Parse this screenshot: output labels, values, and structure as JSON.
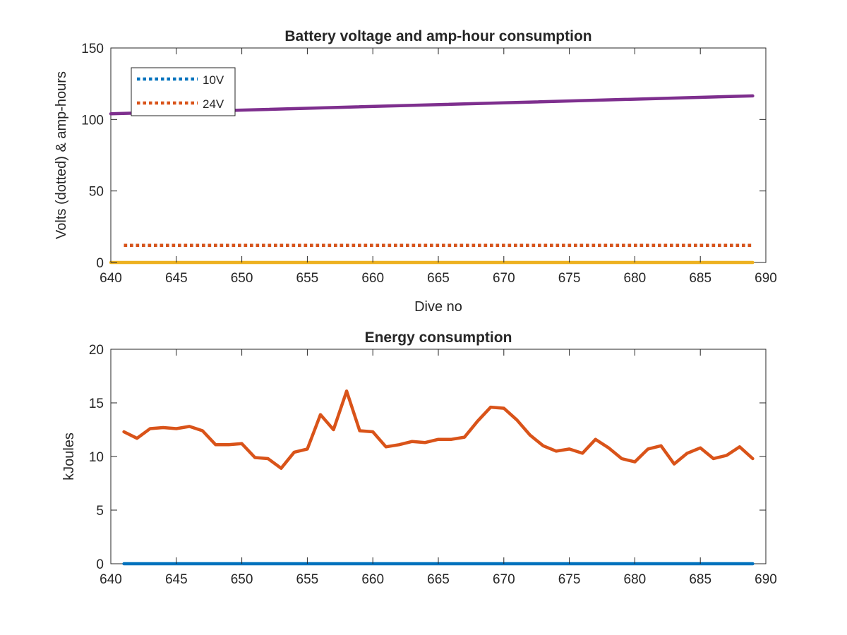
{
  "chart_data": [
    {
      "type": "line",
      "title": "Battery voltage and amp-hour consumption",
      "xlabel": "Dive no",
      "ylabel": "Volts (dotted) & amp-hours",
      "xlim": [
        640,
        690
      ],
      "ylim": [
        0,
        150
      ],
      "xticks": [
        640,
        645,
        650,
        655,
        660,
        665,
        670,
        675,
        680,
        685,
        690
      ],
      "yticks": [
        0,
        50,
        100,
        150
      ],
      "legend_position": "top-left",
      "grid": false,
      "series": [
        {
          "name": "10V",
          "style": "dotted",
          "color": "#0072bd",
          "legend": true,
          "x": [
            641,
            689
          ],
          "y": [
            12,
            12
          ]
        },
        {
          "name": "24V",
          "style": "dotted",
          "color": "#d95319",
          "legend": true,
          "x": [
            641,
            689
          ],
          "y": [
            12,
            12
          ]
        },
        {
          "name": "",
          "style": "solid",
          "color": "#edb120",
          "legend": false,
          "x": [
            640,
            689
          ],
          "y": [
            0,
            0
          ]
        },
        {
          "name": "",
          "style": "solid",
          "color": "#7e2f8e",
          "legend": false,
          "x": [
            640,
            689
          ],
          "y": [
            104,
            116.5
          ]
        }
      ]
    },
    {
      "type": "line",
      "title": "Energy consumption",
      "xlabel": "",
      "ylabel": "kJoules",
      "xlim": [
        640,
        690
      ],
      "ylim": [
        0,
        20
      ],
      "xticks": [
        640,
        645,
        650,
        655,
        660,
        665,
        670,
        675,
        680,
        685,
        690
      ],
      "yticks": [
        0,
        5,
        10,
        15,
        20
      ],
      "grid": false,
      "series": [
        {
          "name": "",
          "style": "solid",
          "color": "#0072bd",
          "legend": false,
          "x": [
            641,
            689
          ],
          "y": [
            0,
            0
          ]
        },
        {
          "name": "",
          "style": "solid",
          "color": "#d95319",
          "legend": false,
          "x": [
            641,
            642,
            643,
            644,
            645,
            646,
            647,
            648,
            649,
            650,
            651,
            652,
            653,
            654,
            655,
            656,
            657,
            658,
            659,
            660,
            661,
            662,
            663,
            664,
            665,
            666,
            667,
            668,
            669,
            670,
            671,
            672,
            673,
            674,
            675,
            676,
            677,
            678,
            679,
            680,
            681,
            682,
            683,
            684,
            685,
            686,
            687,
            688,
            689
          ],
          "y": [
            12.3,
            11.7,
            12.6,
            12.7,
            12.6,
            12.8,
            12.4,
            11.1,
            11.1,
            11.2,
            9.9,
            9.8,
            8.9,
            10.4,
            10.7,
            13.9,
            12.5,
            16.1,
            12.4,
            12.3,
            10.9,
            11.1,
            11.4,
            11.3,
            11.6,
            11.6,
            11.8,
            13.3,
            14.6,
            14.5,
            13.4,
            12.0,
            11.0,
            10.5,
            10.7,
            10.3,
            11.6,
            10.8,
            9.8,
            9.5,
            10.7,
            11.0,
            9.3,
            10.3,
            10.8,
            9.8,
            10.1,
            10.9,
            9.8
          ]
        }
      ]
    }
  ]
}
